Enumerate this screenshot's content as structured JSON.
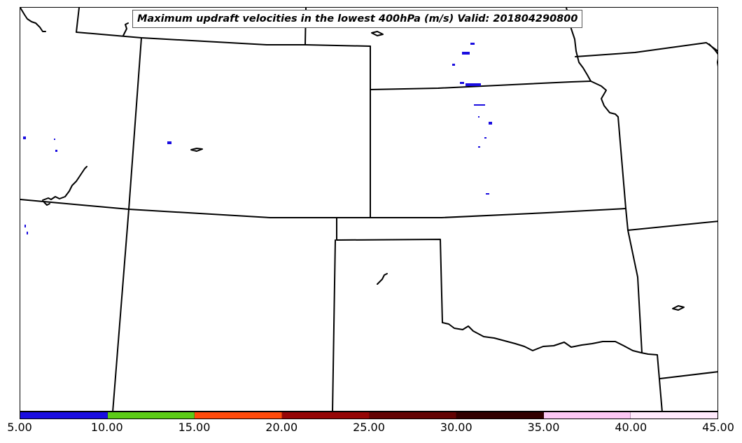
{
  "title": "Maximum updraft velocities in the lowest 400hPa (m/s) Valid: 201804290800",
  "colorbar": {
    "colors": [
      "#1a0de0",
      "#5ccb16",
      "#ff4a0a",
      "#960606",
      "#640404",
      "#320000",
      "#fcc8f4",
      "#ffeafc"
    ],
    "tick_labels": [
      "5.00",
      "10.00",
      "15.00",
      "20.00",
      "25.00",
      "30.00",
      "35.00",
      "40.00",
      "45.00"
    ]
  },
  "map": {
    "border_color": "#000000",
    "updraft_color": "#1a0de0"
  }
}
